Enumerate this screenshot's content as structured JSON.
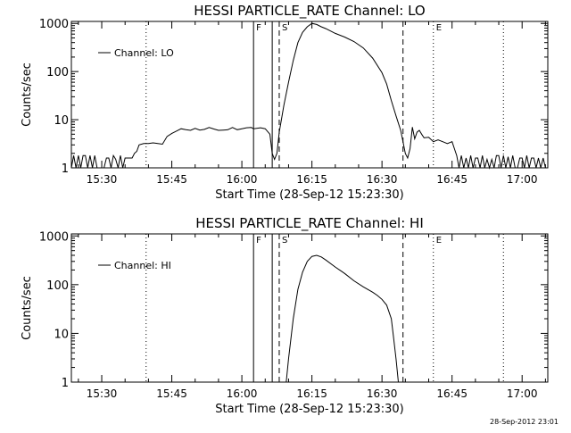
{
  "timestamp": "28-Sep-2012 23:01",
  "chart_data": [
    {
      "type": "line",
      "title": "HESSI PARTICLE_RATE Channel: LO",
      "xlabel": "Start Time (28-Sep-12 15:23:30)",
      "ylabel": "Counts/sec",
      "yscale": "log",
      "ylim": [
        1,
        1100
      ],
      "xlim": [
        "15:23:30",
        "17:05:30"
      ],
      "x_ticks": [
        "15:30",
        "15:45",
        "16:00",
        "16:15",
        "16:30",
        "16:45",
        "17:00"
      ],
      "y_ticks": [
        "1",
        "10",
        "100",
        "1000"
      ],
      "legend": "Channel: LO",
      "legend_position": "top-left",
      "markers": [
        {
          "time": "15:39:30",
          "style": "dotted",
          "label": ""
        },
        {
          "time": "16:02:30",
          "style": "solid",
          "label": "F"
        },
        {
          "time": "16:06:30",
          "style": "solid",
          "label": ""
        },
        {
          "time": "16:08:00",
          "style": "dashed",
          "label": "S"
        },
        {
          "time": "16:34:30",
          "style": "dashed",
          "label": ""
        },
        {
          "time": "16:41:00",
          "style": "dotted",
          "label": "E"
        },
        {
          "time": "16:56:00",
          "style": "dotted",
          "label": ""
        }
      ],
      "series": [
        {
          "name": "Channel: LO",
          "x": [
            "15:23:30",
            "15:24:00",
            "15:24:30",
            "15:25:00",
            "15:25:30",
            "15:26:00",
            "15:26:30",
            "15:27:00",
            "15:27:30",
            "15:28:00",
            "15:28:30",
            "15:29:00",
            "15:29:30",
            "15:30:00",
            "15:30:30",
            "15:31:00",
            "15:31:30",
            "15:32:00",
            "15:32:30",
            "15:33:00",
            "15:33:30",
            "15:34:00",
            "15:34:30",
            "15:35:00",
            "15:35:30",
            "15:36:00",
            "15:36:30",
            "15:37:00",
            "15:37:30",
            "15:38:00",
            "15:39:00",
            "15:40:00",
            "15:41:00",
            "15:42:00",
            "15:43:00",
            "15:44:00",
            "15:45:00",
            "15:46:00",
            "15:47:00",
            "15:48:00",
            "15:49:00",
            "15:50:00",
            "15:51:00",
            "15:52:00",
            "15:53:00",
            "15:54:00",
            "15:55:00",
            "15:56:00",
            "15:57:00",
            "15:58:00",
            "15:59:00",
            "16:00:00",
            "16:01:00",
            "16:02:00",
            "16:02:30",
            "16:04:00",
            "16:05:00",
            "16:06:00",
            "16:06:30",
            "16:07:00",
            "16:07:30",
            "16:08:00",
            "16:09:00",
            "16:10:00",
            "16:11:00",
            "16:12:00",
            "16:13:00",
            "16:14:00",
            "16:15:00",
            "16:16:00",
            "16:17:00",
            "16:18:00",
            "16:20:00",
            "16:22:00",
            "16:24:00",
            "16:26:00",
            "16:28:00",
            "16:30:00",
            "16:31:00",
            "16:32:00",
            "16:33:00",
            "16:34:00",
            "16:34:30",
            "16:35:00",
            "16:35:30",
            "16:36:00",
            "16:36:30",
            "16:37:00",
            "16:37:30",
            "16:38:00",
            "16:38:30",
            "16:39:00",
            "16:40:00",
            "16:41:00",
            "16:42:00",
            "16:43:00",
            "16:44:00",
            "16:45:00",
            "16:45:30",
            "16:46:00",
            "16:46:30",
            "16:47:00",
            "16:47:30",
            "16:48:00",
            "16:48:30",
            "16:49:00",
            "16:49:30",
            "16:50:00",
            "16:50:30",
            "16:51:00",
            "16:51:30",
            "16:52:00",
            "16:52:30",
            "16:53:00",
            "16:53:30",
            "16:54:00",
            "16:54:30",
            "16:55:00",
            "16:55:30",
            "16:56:00",
            "16:56:30",
            "16:57:00",
            "16:57:30",
            "16:58:00",
            "16:58:30",
            "16:59:00",
            "16:59:30",
            "17:00:00",
            "17:00:30",
            "17:01:00",
            "17:01:30",
            "17:02:00",
            "17:02:30",
            "17:03:00",
            "17:03:30",
            "17:04:00",
            "17:04:30",
            "17:05:00"
          ],
          "y": [
            1,
            1.8,
            1,
            1.8,
            1,
            1.8,
            1.8,
            1,
            1.8,
            1,
            1.8,
            1,
            1,
            1,
            1,
            1.6,
            1.6,
            1,
            1.8,
            1.5,
            1,
            1.8,
            1,
            1.6,
            1.6,
            1.6,
            1.6,
            2,
            2.2,
            3,
            3.2,
            3.2,
            3.3,
            3.2,
            3.1,
            4.5,
            5.2,
            5.8,
            6.5,
            6.2,
            6,
            6.6,
            6.1,
            6.3,
            6.9,
            6.4,
            6,
            6.1,
            6.2,
            6.9,
            6.2,
            6.5,
            6.8,
            6.9,
            6.5,
            6.8,
            6.5,
            5,
            2,
            1.5,
            2,
            5.5,
            20,
            60,
            170,
            400,
            650,
            850,
            1000,
            950,
            850,
            780,
            620,
            520,
            420,
            310,
            190,
            95,
            55,
            25,
            12,
            6,
            3.5,
            2,
            1.6,
            2.5,
            7,
            4,
            5.5,
            6,
            5,
            4.2,
            4.3,
            3.5,
            3.8,
            3.5,
            3.2,
            3.5,
            2.5,
            1.8,
            1,
            1.8,
            1,
            1.6,
            1,
            1.8,
            1,
            1.6,
            1.6,
            1,
            1.8,
            1,
            1.5,
            1,
            1.5,
            1,
            1.8,
            1.8,
            1,
            1.8,
            1,
            1.7,
            1,
            1.8,
            1,
            1,
            1.6,
            1.6,
            1,
            1.8,
            1,
            1.6,
            1.6,
            1,
            1.6,
            1,
            1.6,
            1
          ]
        }
      ]
    },
    {
      "type": "line",
      "title": "HESSI PARTICLE_RATE Channel: HI",
      "xlabel": "Start Time (28-Sep-12 15:23:30)",
      "ylabel": "Counts/sec",
      "yscale": "log",
      "ylim": [
        1,
        1100
      ],
      "xlim": [
        "15:23:30",
        "17:05:30"
      ],
      "x_ticks": [
        "15:30",
        "15:45",
        "16:00",
        "16:15",
        "16:30",
        "16:45",
        "17:00"
      ],
      "y_ticks": [
        "1",
        "10",
        "100",
        "1000"
      ],
      "legend": "Channel: HI",
      "legend_position": "top-left",
      "markers": [
        {
          "time": "15:39:30",
          "style": "dotted",
          "label": ""
        },
        {
          "time": "16:02:30",
          "style": "solid",
          "label": "F"
        },
        {
          "time": "16:06:30",
          "style": "solid",
          "label": ""
        },
        {
          "time": "16:08:00",
          "style": "dashed",
          "label": "S"
        },
        {
          "time": "16:34:30",
          "style": "dashed",
          "label": ""
        },
        {
          "time": "16:41:00",
          "style": "dotted",
          "label": "E"
        },
        {
          "time": "16:56:00",
          "style": "dotted",
          "label": ""
        }
      ],
      "series": [
        {
          "name": "Channel: HI",
          "x": [
            "16:09:30",
            "16:10:00",
            "16:11:00",
            "16:12:00",
            "16:13:00",
            "16:14:00",
            "16:15:00",
            "16:16:00",
            "16:17:00",
            "16:18:00",
            "16:20:00",
            "16:22:00",
            "16:24:00",
            "16:26:00",
            "16:28:00",
            "16:29:00",
            "16:30:00",
            "16:31:00",
            "16:32:00",
            "16:32:30",
            "16:33:00",
            "16:33:30"
          ],
          "y": [
            1,
            3,
            20,
            80,
            180,
            300,
            380,
            400,
            370,
            320,
            230,
            170,
            120,
            90,
            70,
            60,
            50,
            38,
            20,
            8,
            3,
            1
          ]
        }
      ]
    }
  ]
}
